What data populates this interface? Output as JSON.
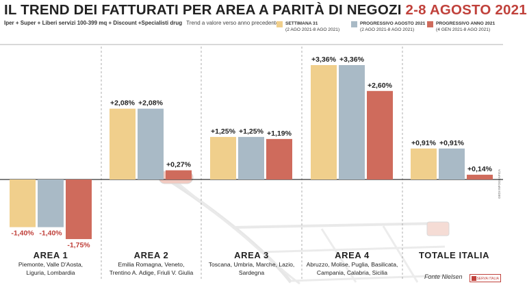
{
  "header": {
    "title_main": "IL TREND DEI FATTURATI PER AREA A PARITÀ DI NEGOZI",
    "title_period": "2-8 AGOSTO 2021",
    "subtitle": "Iper + Super + Liberi servizi 100-399 mq + Discount +Specialisti drug",
    "subtitle_note": "Trend a valore verso anno precedente"
  },
  "legend": [
    {
      "name": "SETTIMANA 31",
      "detail": "(2 AGO 2021-8 AGO 2021)",
      "color": "#f0cf8c"
    },
    {
      "name": "PROGRESSIVO AGOSTO 2021",
      "detail": "(2 AGO 2021-8 AGO 2021)",
      "color": "#a9bac6"
    },
    {
      "name": "PROGRESSIVO ANNO 2021",
      "detail": "(4 GEN 2021-8 AGO 2021)",
      "color": "#cf6b5c"
    }
  ],
  "chart_data": {
    "type": "bar",
    "categories": [
      "AREA 1",
      "AREA 2",
      "AREA 3",
      "AREA 4",
      "TOTALE ITALIA"
    ],
    "category_details": [
      "Piemonte, Valle D'Aosta, Liguria, Lombardia",
      "Emilia Romagna, Veneto, Trentino A. Adige, Friuli V. Giulia",
      "Toscana, Umbria, Marche, Lazio, Sardegna",
      "Abruzzo, Molise, Puglia, Basilicata, Campania, Calabria, Sicilia",
      ""
    ],
    "series": [
      {
        "name": "SETTIMANA 31",
        "values": [
          -1.4,
          2.08,
          1.25,
          3.36,
          0.91
        ],
        "labels": [
          "-1,40%",
          "+2,08%",
          "+1,25%",
          "+3,36%",
          "+0,91%"
        ],
        "color": "#f0cf8c"
      },
      {
        "name": "PROGRESSIVO AGOSTO 2021",
        "values": [
          -1.4,
          2.08,
          1.25,
          3.36,
          0.91
        ],
        "labels": [
          "-1,40%",
          "+2,08%",
          "+1,25%",
          "+3,36%",
          "+0,91%"
        ],
        "color": "#a9bac6"
      },
      {
        "name": "PROGRESSIVO ANNO 2021",
        "values": [
          -1.75,
          0.27,
          1.19,
          2.6,
          0.14
        ],
        "labels": [
          "-1,75%",
          "+0,27%",
          "+1,19%",
          "+2,60%",
          "+0,14%"
        ],
        "color": "#cf6b5c"
      }
    ],
    "label_color_negative": "#c0413b",
    "grid": false
  },
  "footer": {
    "source": "Fonte Nielsen",
    "logo_text": "OSSERVA ITALIA",
    "credit": "GEDI INFOGRAFICA"
  }
}
